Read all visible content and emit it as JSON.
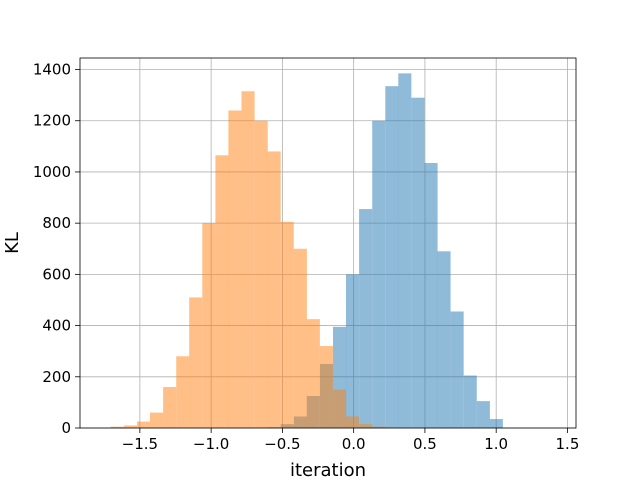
{
  "chart_data": {
    "type": "bar",
    "xlabel": "iteration",
    "ylabel": "KL",
    "xlim": [
      -1.92,
      1.56
    ],
    "ylim": [
      0,
      1445
    ],
    "grid": true,
    "x_ticks": [
      -1.5,
      -1.0,
      -0.5,
      0.0,
      0.5,
      1.0,
      1.5
    ],
    "x_tick_labels": [
      "−1.5",
      "−1.0",
      "−0.5",
      "0.0",
      "0.5",
      "1.0",
      "1.5"
    ],
    "y_ticks": [
      0,
      200,
      400,
      600,
      800,
      1000,
      1200,
      1400
    ],
    "y_tick_labels": [
      "0",
      "200",
      "400",
      "600",
      "800",
      "1000",
      "1200",
      "1400"
    ],
    "series": [
      {
        "color": "#1f77b4",
        "bin_width": 0.0917,
        "x": [
          -0.558,
          -0.466,
          -0.374,
          -0.283,
          -0.191,
          -0.099,
          -0.008,
          0.084,
          0.176,
          0.268,
          0.359,
          0.451,
          0.543,
          0.634,
          0.726,
          0.818,
          0.91,
          1.001
        ],
        "values": [
          3,
          15,
          45,
          125,
          250,
          395,
          600,
          855,
          1200,
          1335,
          1385,
          1290,
          1035,
          690,
          455,
          205,
          105,
          35
        ]
      },
      {
        "color": "#ff7f0e",
        "bin_width": 0.0917,
        "x": [
          -1.658,
          -1.566,
          -1.474,
          -1.383,
          -1.291,
          -1.199,
          -1.108,
          -1.016,
          -0.924,
          -0.833,
          -0.741,
          -0.649,
          -0.558,
          -0.466,
          -0.374,
          -0.283,
          -0.191,
          -0.099,
          -0.008,
          0.084,
          0.176
        ],
        "values": [
          5,
          10,
          25,
          60,
          160,
          280,
          510,
          800,
          1065,
          1240,
          1315,
          1200,
          1080,
          805,
          700,
          425,
          320,
          150,
          45,
          15,
          5
        ]
      }
    ]
  }
}
